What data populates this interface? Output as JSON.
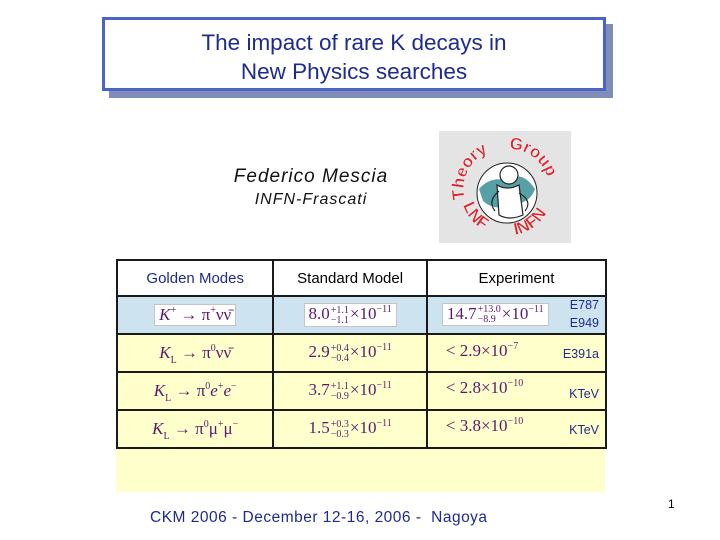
{
  "title": {
    "line1": "The impact of rare K decays in",
    "line2": "New Physics searches"
  },
  "author": {
    "name": "Federico Mescia",
    "institution": "INFN-Frascati"
  },
  "logo": {
    "text_top_left": "Theory",
    "text_top_right": "Group",
    "text_bottom_left": "LNF",
    "text_bottom_right": "INFN"
  },
  "table": {
    "headers": [
      "Golden Modes",
      "Standard Model",
      "Experiment"
    ],
    "rows": [
      {
        "experiment_labels": [
          "E787",
          "E949"
        ]
      },
      {
        "experiment_labels": [
          "E391a"
        ]
      },
      {
        "experiment_labels": [
          "KTeV"
        ]
      },
      {
        "experiment_labels": [
          "KTeV"
        ]
      }
    ]
  },
  "formulas": {
    "r1_mode": {
      "k": "K",
      "ksup": "+",
      "arrow": "→",
      "pi": "π",
      "pisup": "+",
      "nunu": "νν̄"
    },
    "r1_sm": {
      "base": "8.0",
      "plus": "+1.1",
      "minus": "−1.1",
      "times": "×10",
      "exp": "−11"
    },
    "r1_exp": {
      "base": "14.7",
      "plus": "+13.0",
      "minus": "−8.9",
      "times": "×10",
      "exp": "−11"
    },
    "r2_mode": {
      "k": "K",
      "ksub": "L",
      "arrow": "→",
      "pi": "π",
      "pisup": "0",
      "rest": "νν̄"
    },
    "r2_sm": {
      "base": "2.9",
      "plus": "+0.4",
      "minus": "−0.4",
      "times": "×10",
      "exp": "−11"
    },
    "r2_exp": {
      "lt": "<",
      "base": "2.9",
      "times": "×10",
      "exp": "−7"
    },
    "r3_mode": {
      "k": "K",
      "ksub": "L",
      "arrow": "→",
      "pi": "π",
      "pisup": "0",
      "e1": "e",
      "e1sup": "+",
      "e2": "e",
      "e2sup": "−"
    },
    "r3_sm": {
      "base": "3.7",
      "plus": "+1.1",
      "minus": "−0.9",
      "times": "×10",
      "exp": "−11"
    },
    "r3_exp": {
      "lt": "<",
      "base": "2.8",
      "times": "×10",
      "exp": "−10"
    },
    "r4_mode": {
      "k": "K",
      "ksub": "L",
      "arrow": "→",
      "pi": "π",
      "pisup": "0",
      "m1": "μ",
      "m1sup": "+",
      "m2": "μ",
      "m2sup": "−"
    },
    "r4_sm": {
      "base": "1.5",
      "plus": "+0.3",
      "minus": "−0.3",
      "times": "×10",
      "exp": "−11"
    },
    "r4_exp": {
      "lt": "<",
      "base": "3.8",
      "times": "×10",
      "exp": "−10"
    }
  },
  "page_number": "1",
  "footer": "CKM 2006 - December 12-16, 2006 -  Nagoya",
  "colors": {
    "title_text": "#1d2b8f",
    "title_border": "#4a64c8",
    "table_bg": "#ffffcc",
    "highlight_row": "#cde4f0",
    "formula": "#5b1a6e",
    "label": "#1d2b8f"
  }
}
